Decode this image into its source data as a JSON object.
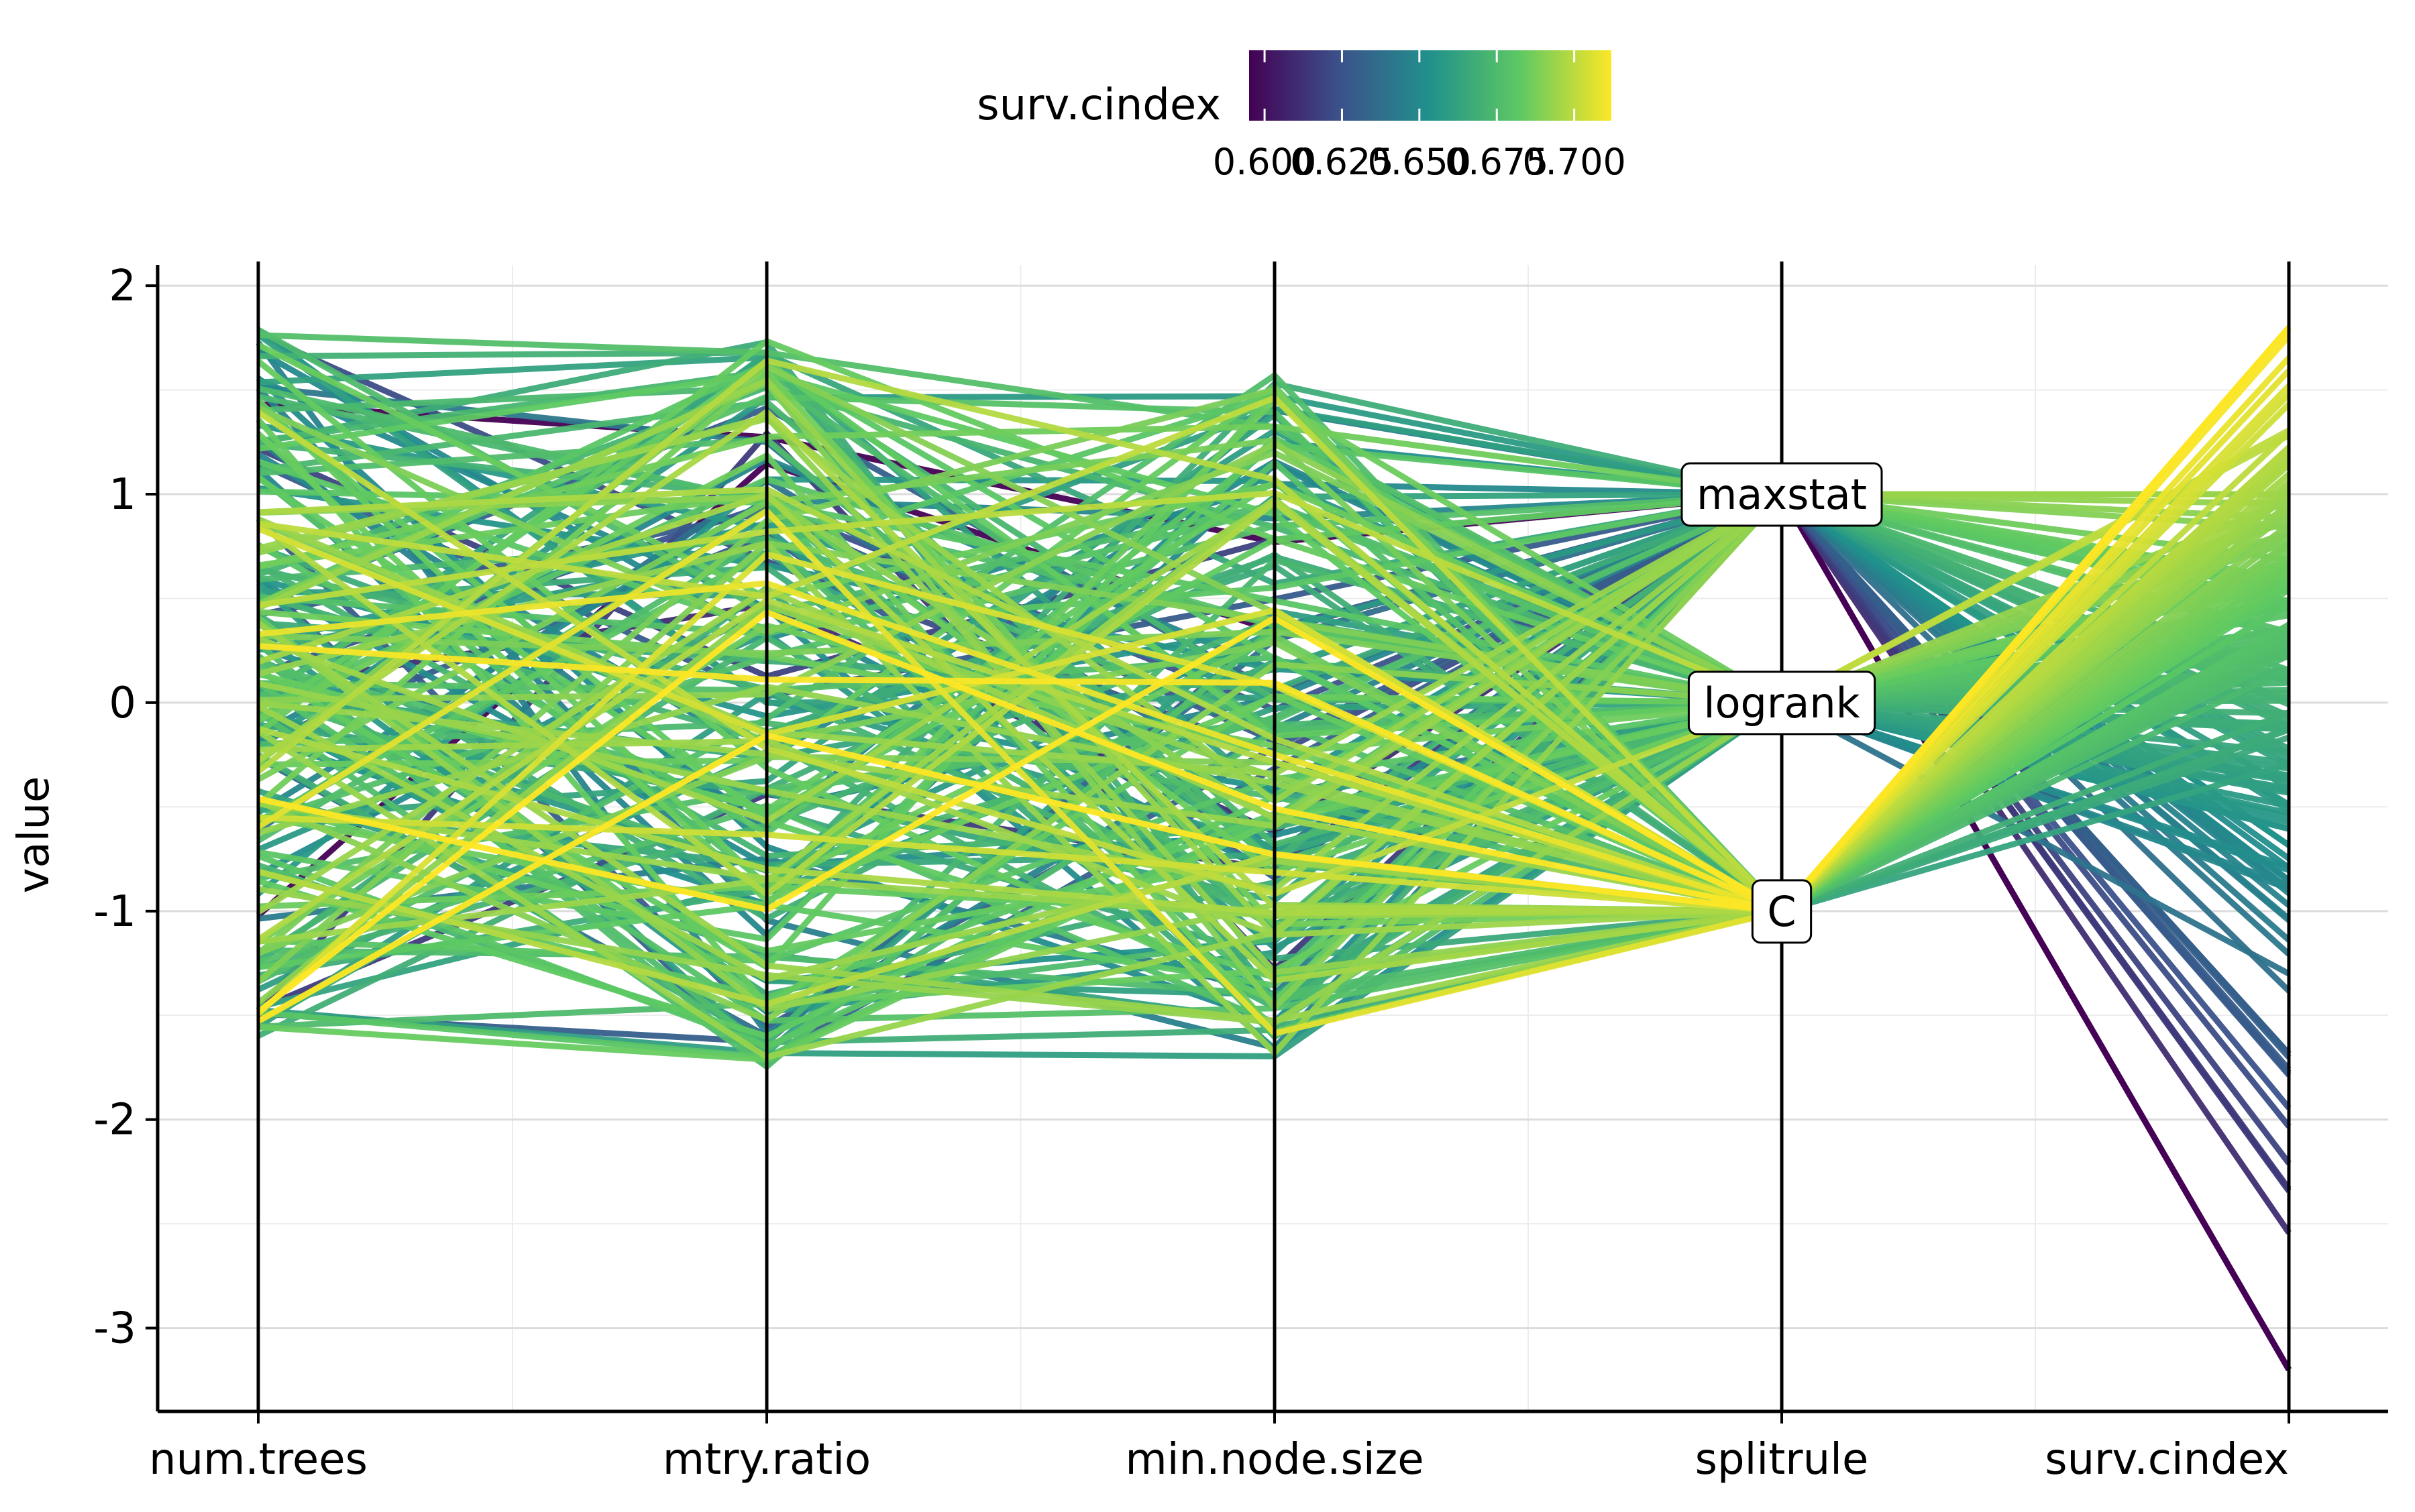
{
  "chart_data": {
    "type": "parallel_coordinates",
    "ylabel": "value",
    "xlabel": "",
    "axes": [
      "num.trees",
      "mtry.ratio",
      "min.node.size",
      "splitrule",
      "surv.cindex"
    ],
    "ylim": [
      -3.4,
      2.1
    ],
    "y_ticks": [
      {
        "value": 2,
        "label": "2"
      },
      {
        "value": 1,
        "label": "1"
      },
      {
        "value": 0,
        "label": "0"
      },
      {
        "value": -1,
        "label": "-1"
      },
      {
        "value": -2,
        "label": "-2"
      },
      {
        "value": -3,
        "label": "-3"
      }
    ],
    "grid": true,
    "legend": {
      "title": "surv.cindex",
      "position": "top",
      "range": [
        0.595,
        0.712
      ],
      "ticks": [
        {
          "value": 0.6,
          "label": "0.600"
        },
        {
          "value": 0.625,
          "label": "0.625"
        },
        {
          "value": 0.65,
          "label": "0.650"
        },
        {
          "value": 0.675,
          "label": "0.675"
        },
        {
          "value": 0.7,
          "label": "0.700"
        }
      ],
      "colormap": [
        "#440154",
        "#3b528b",
        "#21918c",
        "#5ec962",
        "#fde725"
      ]
    },
    "categorical_labels": [
      {
        "axis": "splitrule",
        "label": "maxstat",
        "value": 1.0
      },
      {
        "axis": "splitrule",
        "label": "logrank",
        "value": 0.0
      },
      {
        "axis": "splitrule",
        "label": "C",
        "value": -1.0
      }
    ],
    "n_configurations": 200,
    "scaled_value_ranges": {
      "num.trees": [
        -1.6,
        1.8
      ],
      "mtry.ratio": [
        -1.75,
        1.75
      ],
      "min.node.size": [
        -1.7,
        1.57
      ],
      "splitrule": [
        -1,
        1
      ],
      "surv.cindex": [
        -3.2,
        1.8
      ]
    }
  }
}
